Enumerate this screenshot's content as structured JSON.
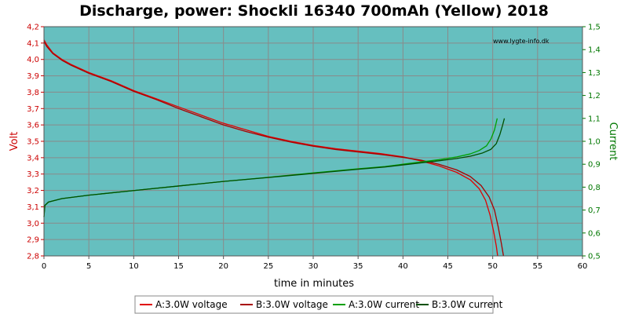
{
  "colors": {
    "plot_bg": "#66BFBF",
    "grid": "#8A8A8A",
    "left_axis": "#CC0000",
    "right_axis": "#007700",
    "series_a_voltage": "#E00000",
    "series_b_voltage": "#A80000",
    "series_a_current": "#00A000",
    "series_b_current": "#005000"
  },
  "chart_data": {
    "type": "line",
    "title": "Discharge, power: Shockli 16340 700mAh (Yellow) 2018",
    "watermark": "www.lygte-info.dk",
    "xlabel": "time in minutes",
    "ylabel_left": "Volt",
    "ylabel_right": "Current",
    "xlim": [
      0,
      60
    ],
    "ylim_left": [
      2.8,
      4.2
    ],
    "ylim_right": [
      0.5,
      1.5
    ],
    "grid": true,
    "legend_position": "bottom",
    "x_ticks": [
      "0",
      "5",
      "10",
      "15",
      "20",
      "25",
      "30",
      "35",
      "40",
      "45",
      "50",
      "55",
      "60"
    ],
    "y_ticks_left": [
      "2,8",
      "2,9",
      "3,0",
      "3,1",
      "3,2",
      "3,3",
      "3,4",
      "3,5",
      "3,6",
      "3,7",
      "3,8",
      "3,9",
      "4,0",
      "4,1",
      "4,2"
    ],
    "y_ticks_right": [
      "0,5",
      "0,6",
      "0,7",
      "0,8",
      "0,9",
      "1,0",
      "1,1",
      "1,2",
      "1,3",
      "1,4",
      "1,5"
    ],
    "series": [
      {
        "name": "A:3.0W voltage",
        "axis": "left",
        "points": [
          [
            0,
            4.12
          ],
          [
            0.3,
            4.09
          ],
          [
            1,
            4.04
          ],
          [
            2,
            4.0
          ],
          [
            3,
            3.97
          ],
          [
            5,
            3.92
          ],
          [
            7.5,
            3.87
          ],
          [
            10,
            3.81
          ],
          [
            12.5,
            3.76
          ],
          [
            15,
            3.71
          ],
          [
            17.5,
            3.66
          ],
          [
            20,
            3.61
          ],
          [
            22.5,
            3.57
          ],
          [
            25,
            3.53
          ],
          [
            27.5,
            3.5
          ],
          [
            30,
            3.475
          ],
          [
            32.5,
            3.455
          ],
          [
            35,
            3.44
          ],
          [
            37.5,
            3.425
          ],
          [
            40,
            3.405
          ],
          [
            42,
            3.38
          ],
          [
            44,
            3.35
          ],
          [
            46,
            3.31
          ],
          [
            47.5,
            3.265
          ],
          [
            48.5,
            3.21
          ],
          [
            49.2,
            3.14
          ],
          [
            49.7,
            3.05
          ],
          [
            50.1,
            2.95
          ],
          [
            50.4,
            2.86
          ],
          [
            50.55,
            2.8
          ]
        ]
      },
      {
        "name": "B:3.0W voltage",
        "axis": "left",
        "points": [
          [
            0,
            4.11
          ],
          [
            0.3,
            4.08
          ],
          [
            1,
            4.035
          ],
          [
            2,
            3.995
          ],
          [
            3,
            3.965
          ],
          [
            5,
            3.915
          ],
          [
            7.5,
            3.865
          ],
          [
            10,
            3.805
          ],
          [
            12.5,
            3.755
          ],
          [
            15,
            3.7
          ],
          [
            17.5,
            3.65
          ],
          [
            20,
            3.6
          ],
          [
            22.5,
            3.56
          ],
          [
            25,
            3.525
          ],
          [
            27.5,
            3.495
          ],
          [
            30,
            3.47
          ],
          [
            32.5,
            3.45
          ],
          [
            35,
            3.435
          ],
          [
            37.5,
            3.42
          ],
          [
            40,
            3.402
          ],
          [
            42,
            3.385
          ],
          [
            44,
            3.36
          ],
          [
            46,
            3.325
          ],
          [
            47.5,
            3.285
          ],
          [
            48.7,
            3.23
          ],
          [
            49.6,
            3.16
          ],
          [
            50.2,
            3.08
          ],
          [
            50.6,
            2.98
          ],
          [
            50.95,
            2.88
          ],
          [
            51.2,
            2.8
          ]
        ]
      },
      {
        "name": "A:3.0W current",
        "axis": "right",
        "points": [
          [
            0,
            0.67
          ],
          [
            0.1,
            0.72
          ],
          [
            0.5,
            0.735
          ],
          [
            2,
            0.75
          ],
          [
            5,
            0.765
          ],
          [
            10,
            0.785
          ],
          [
            15,
            0.805
          ],
          [
            20,
            0.825
          ],
          [
            25,
            0.843
          ],
          [
            30,
            0.862
          ],
          [
            35,
            0.88
          ],
          [
            38,
            0.89
          ],
          [
            40,
            0.9
          ],
          [
            42,
            0.91
          ],
          [
            44,
            0.92
          ],
          [
            46,
            0.932
          ],
          [
            47.5,
            0.945
          ],
          [
            48.5,
            0.96
          ],
          [
            49.3,
            0.98
          ],
          [
            49.8,
            1.01
          ],
          [
            50.2,
            1.05
          ],
          [
            50.5,
            1.1
          ]
        ]
      },
      {
        "name": "B:3.0W current",
        "axis": "right",
        "points": [
          [
            0,
            0.67
          ],
          [
            0.1,
            0.72
          ],
          [
            0.5,
            0.735
          ],
          [
            2,
            0.75
          ],
          [
            5,
            0.765
          ],
          [
            10,
            0.785
          ],
          [
            15,
            0.805
          ],
          [
            20,
            0.825
          ],
          [
            25,
            0.842
          ],
          [
            30,
            0.86
          ],
          [
            35,
            0.878
          ],
          [
            38,
            0.888
          ],
          [
            40,
            0.897
          ],
          [
            42,
            0.906
          ],
          [
            44,
            0.915
          ],
          [
            46,
            0.925
          ],
          [
            47.5,
            0.935
          ],
          [
            48.8,
            0.948
          ],
          [
            49.8,
            0.965
          ],
          [
            50.4,
            0.99
          ],
          [
            50.8,
            1.03
          ],
          [
            51.1,
            1.07
          ],
          [
            51.3,
            1.1
          ]
        ]
      }
    ]
  }
}
